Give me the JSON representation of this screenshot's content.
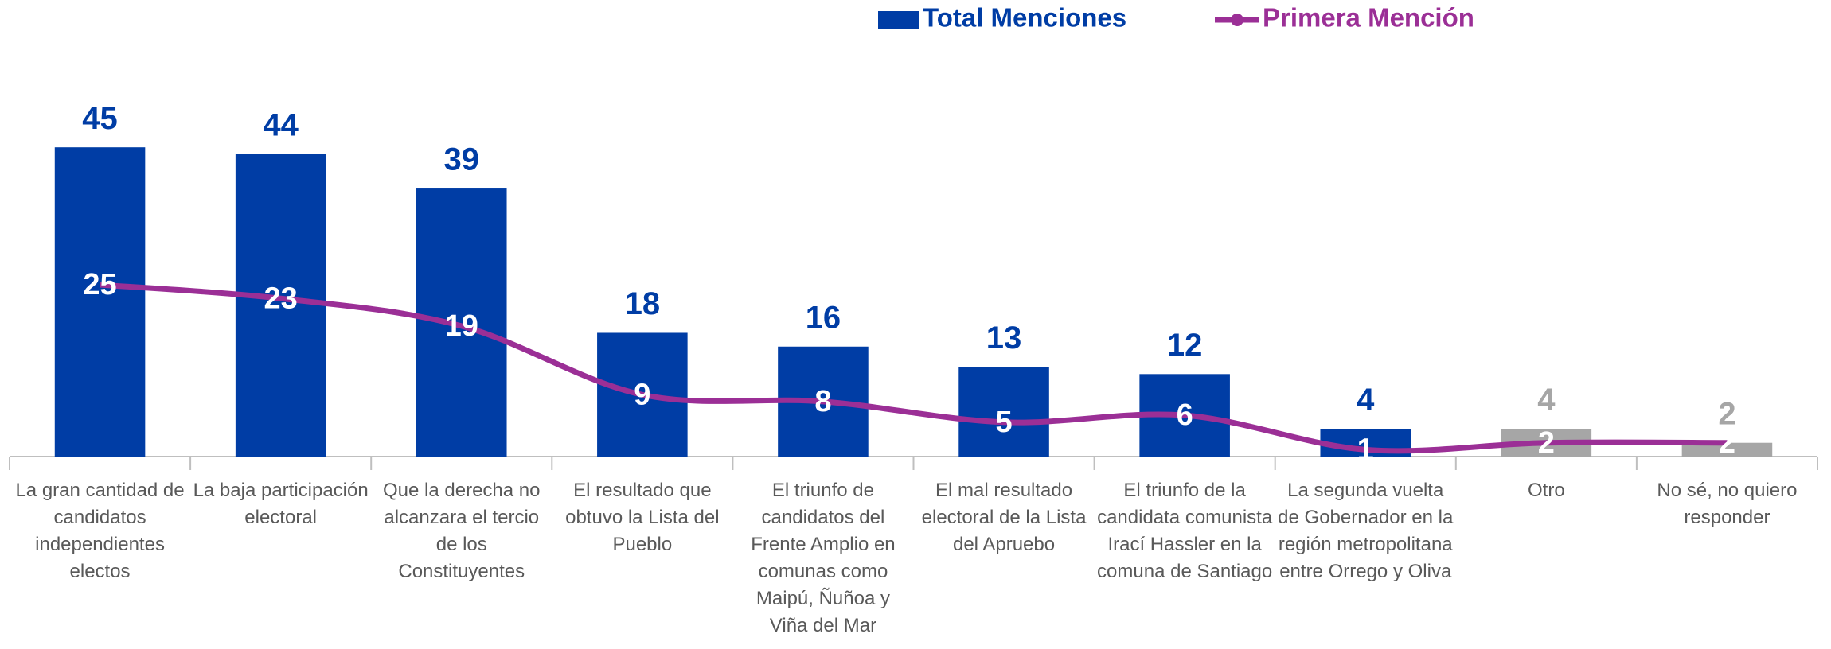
{
  "chart_data": {
    "type": "bar_line",
    "categories": [
      "La gran cantidad de candidatos independientes electos",
      "La baja participación electoral",
      "Que la derecha no alcanzara el tercio de los Constituyentes",
      "El resultado que obtuvo la Lista del Pueblo",
      "El triunfo de candidatos del Frente Amplio en comunas como Maipú, Ñuñoa y Viña del Mar",
      "El mal resultado electoral de la Lista del Apruebo",
      "El triunfo de la candidata comunista Irací Hassler en la comuna de Santiago",
      "La segunda vuelta de Gobernador en la región metropolitana entre Orrego y Oliva",
      "Otro",
      "No sé, no quiero responder"
    ],
    "series": [
      {
        "name": "Total Menciones",
        "type": "bar",
        "color": "#003da5",
        "colors": [
          "#003da5",
          "#003da5",
          "#003da5",
          "#003da5",
          "#003da5",
          "#003da5",
          "#003da5",
          "#003da5",
          "#a6a6a6",
          "#a6a6a6"
        ],
        "values": [
          45,
          44,
          39,
          18,
          16,
          13,
          12,
          4,
          4,
          2
        ]
      },
      {
        "name": "Primera Mención",
        "type": "line",
        "color": "#9b2f96",
        "values": [
          25,
          23,
          19,
          9,
          8,
          5,
          6,
          1,
          2,
          2
        ]
      }
    ],
    "ylim": [
      0,
      50
    ],
    "legend": "top"
  }
}
